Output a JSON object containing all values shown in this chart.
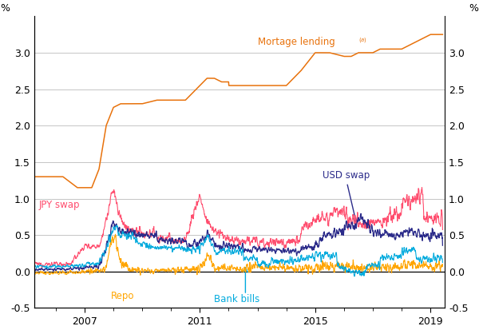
{
  "ylabel_left": "%",
  "ylabel_right": "%",
  "ylim": [
    -0.5,
    3.5
  ],
  "yticks": [
    -0.5,
    0.0,
    0.5,
    1.0,
    1.5,
    2.0,
    2.5,
    3.0
  ],
  "xlim_start": 2005.25,
  "xlim_end": 2019.5,
  "xticks": [
    2007,
    2011,
    2015,
    2019
  ],
  "colors": {
    "mortgage": "#E8720C",
    "jpy": "#FF4D6E",
    "usd": "#2B2B8A",
    "repo": "#FFA500",
    "bank_bills": "#00AADD"
  },
  "labels": {
    "mortgage": "Mortage lending⁺ᵃ⁾",
    "jpy": "JPY swap",
    "usd": "USD swap",
    "repo": "Repo",
    "bank_bills": "Bank bills"
  },
  "background_color": "#ffffff",
  "grid_color": "#bbbbbb"
}
